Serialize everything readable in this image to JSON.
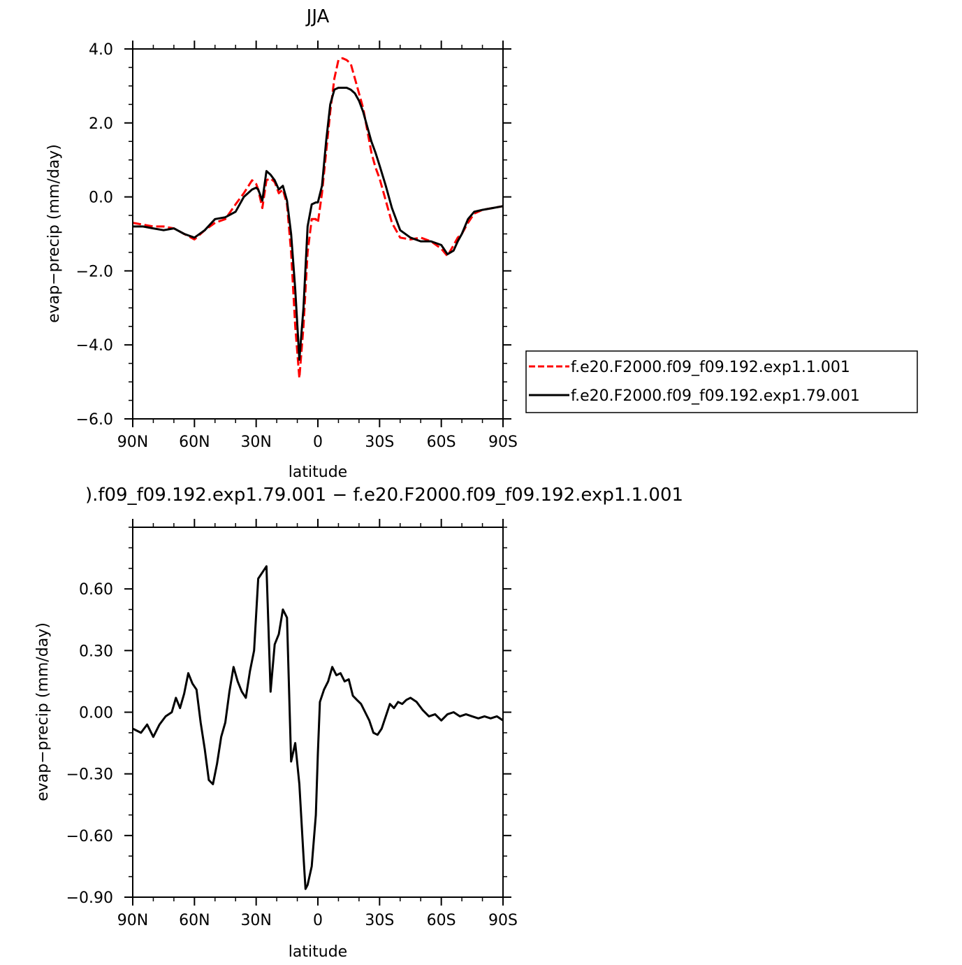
{
  "chart_data": [
    {
      "type": "line",
      "title": "JJA",
      "xlabel": "latitude",
      "ylabel": "evap−precip (mm/day)",
      "xlim": [
        90,
        -90
      ],
      "ylim": [
        -6,
        4
      ],
      "x_tick_values": [
        90,
        60,
        30,
        0,
        -30,
        -60,
        -90
      ],
      "x_tick_labels": [
        "90N",
        "60N",
        "30N",
        "0",
        "30S",
        "60S",
        "90S"
      ],
      "y_tick_values": [
        4,
        2,
        0,
        -2,
        -4,
        -6
      ],
      "y_tick_labels": [
        "4.0",
        "2.0",
        "0.0",
        "−2.0",
        "−4.0",
        "−6.0"
      ],
      "legend": "right",
      "series": [
        {
          "name": "f.e20.F2000.f09_f09.192.exp1.1.001",
          "color": "#ff0000",
          "dash": "dashed",
          "x": [
            90,
            85,
            80,
            75,
            70,
            65,
            60,
            55,
            50,
            45,
            40,
            36,
            32,
            30,
            29,
            27,
            25,
            23,
            21,
            19,
            17,
            15,
            13,
            11,
            9,
            7,
            5,
            3,
            1,
            0,
            -2,
            -4,
            -6,
            -8,
            -10,
            -12,
            -14,
            -16,
            -18,
            -20,
            -22,
            -24,
            -26,
            -28,
            -30,
            -33,
            -36,
            -40,
            -45,
            -50,
            -55,
            -60,
            -63,
            -66,
            -68,
            -70,
            -73,
            -76,
            -80,
            -85,
            -90
          ],
          "y": [
            -0.7,
            -0.75,
            -0.8,
            -0.8,
            -0.85,
            -1.0,
            -1.15,
            -0.9,
            -0.7,
            -0.6,
            -0.2,
            0.1,
            0.45,
            0.35,
            0.2,
            -0.3,
            0.45,
            0.5,
            0.4,
            0.1,
            0.2,
            -0.2,
            -1.5,
            -3.5,
            -4.9,
            -3.5,
            -1.5,
            -0.6,
            -0.6,
            -0.7,
            0.1,
            1.2,
            2.3,
            3.2,
            3.7,
            3.75,
            3.7,
            3.6,
            3.2,
            2.8,
            2.4,
            1.8,
            1.2,
            0.8,
            0.5,
            -0.1,
            -0.7,
            -1.1,
            -1.15,
            -1.1,
            -1.2,
            -1.4,
            -1.6,
            -1.3,
            -1.1,
            -1.0,
            -0.7,
            -0.45,
            -0.35,
            -0.3,
            -0.25
          ]
        },
        {
          "name": "f.e20.F2000.f09_f09.192.exp1.79.001",
          "color": "#000000",
          "dash": "solid",
          "x": [
            90,
            85,
            80,
            75,
            70,
            65,
            60,
            55,
            50,
            45,
            40,
            36,
            32,
            30,
            29,
            27,
            25,
            23,
            21,
            19,
            17,
            15,
            13,
            11,
            9,
            7,
            5,
            3,
            1,
            0,
            -2,
            -4,
            -6,
            -8,
            -10,
            -12,
            -14,
            -16,
            -18,
            -20,
            -22,
            -24,
            -26,
            -28,
            -30,
            -33,
            -36,
            -40,
            -45,
            -50,
            -55,
            -60,
            -63,
            -66,
            -68,
            -70,
            -73,
            -76,
            -80,
            -85,
            -90
          ],
          "y": [
            -0.8,
            -0.8,
            -0.85,
            -0.9,
            -0.85,
            -1.0,
            -1.1,
            -0.9,
            -0.6,
            -0.55,
            -0.4,
            0.0,
            0.2,
            0.25,
            0.2,
            -0.1,
            0.7,
            0.6,
            0.45,
            0.2,
            0.3,
            -0.1,
            -1.0,
            -2.5,
            -4.4,
            -3.0,
            -0.8,
            -0.2,
            -0.15,
            -0.15,
            0.3,
            1.5,
            2.5,
            2.9,
            2.95,
            2.95,
            2.95,
            2.9,
            2.8,
            2.6,
            2.3,
            1.9,
            1.5,
            1.2,
            0.85,
            0.3,
            -0.3,
            -0.9,
            -1.1,
            -1.2,
            -1.2,
            -1.3,
            -1.55,
            -1.45,
            -1.2,
            -1.0,
            -0.6,
            -0.4,
            -0.35,
            -0.3,
            -0.25
          ]
        }
      ]
    },
    {
      "type": "line",
      "title": ").f09_f09.192.exp1.79.001 − f.e20.F2000.f09_f09.192.exp1.1.001",
      "xlabel": "latitude",
      "ylabel": "evap−precip (mm/day)",
      "xlim": [
        90,
        -90
      ],
      "ylim": [
        -0.9,
        0.9
      ],
      "x_tick_values": [
        90,
        60,
        30,
        0,
        -30,
        -60,
        -90
      ],
      "x_tick_labels": [
        "90N",
        "60N",
        "30N",
        "0",
        "30S",
        "60S",
        "90S"
      ],
      "y_tick_values": [
        0.6,
        0.3,
        0.0,
        -0.3,
        -0.6,
        -0.9
      ],
      "y_tick_labels": [
        "0.60",
        "0.30",
        "0.00",
        "−0.30",
        "−0.60",
        "−0.90"
      ],
      "series": [
        {
          "color": "#000000",
          "dash": "solid",
          "x": [
            90,
            86,
            83,
            80,
            77,
            74,
            71,
            69,
            67,
            65,
            63,
            61,
            59,
            57,
            55,
            53,
            51,
            49,
            47,
            45,
            43,
            41,
            39,
            37,
            35,
            33,
            31,
            29,
            27,
            25,
            23,
            21,
            19,
            17,
            15,
            13,
            11,
            9,
            7,
            6,
            5,
            3,
            1,
            0,
            -1,
            -3,
            -5,
            -7,
            -9,
            -11,
            -13,
            -15,
            -17,
            -19,
            -21,
            -23,
            -25,
            -27,
            -29,
            -31,
            -33,
            -35,
            -37,
            -39,
            -41,
            -43,
            -45,
            -48,
            -51,
            -54,
            -57,
            -60,
            -63,
            -66,
            -69,
            -72,
            -75,
            -78,
            -81,
            -84,
            -87,
            -90
          ],
          "y": [
            -0.08,
            -0.1,
            -0.06,
            -0.12,
            -0.06,
            -0.02,
            0.0,
            0.07,
            0.02,
            0.09,
            0.19,
            0.14,
            0.11,
            -0.05,
            -0.18,
            -0.33,
            -0.35,
            -0.25,
            -0.12,
            -0.05,
            0.1,
            0.22,
            0.15,
            0.1,
            0.07,
            0.2,
            0.3,
            0.65,
            0.68,
            0.71,
            0.1,
            0.33,
            0.38,
            0.5,
            0.46,
            -0.24,
            -0.15,
            -0.35,
            -0.7,
            -0.86,
            -0.84,
            -0.75,
            -0.5,
            -0.2,
            0.05,
            0.11,
            0.15,
            0.22,
            0.18,
            0.19,
            0.15,
            0.16,
            0.08,
            0.06,
            0.04,
            0.0,
            -0.04,
            -0.1,
            -0.11,
            -0.08,
            -0.02,
            0.04,
            0.02,
            0.05,
            0.04,
            0.06,
            0.07,
            0.05,
            0.01,
            -0.02,
            -0.01,
            -0.04,
            -0.01,
            0.0,
            -0.02,
            -0.01,
            -0.02,
            -0.03,
            -0.02,
            -0.03,
            -0.02,
            -0.04
          ]
        }
      ]
    }
  ]
}
